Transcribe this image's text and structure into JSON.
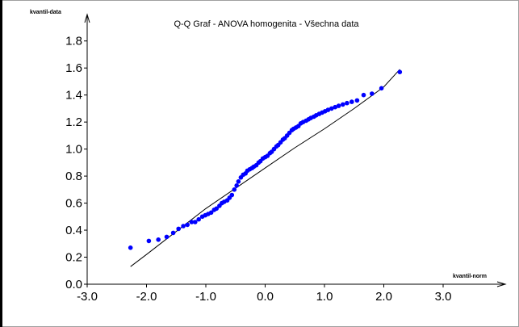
{
  "chart_data": {
    "type": "scatter",
    "title": "Q-Q Graf - ANOVA homogenita - Všechna data",
    "xlabel": "kvantil-norm",
    "ylabel": "kvantil-data",
    "xlim": [
      -3.0,
      3.0
    ],
    "ylim": [
      0.0,
      1.9
    ],
    "xticks": [
      "-3.0",
      "-2.0",
      "-1.0",
      "0.0",
      "1.0",
      "2.0",
      "3.0"
    ],
    "yticks": [
      "0.0",
      "0.2",
      "0.4",
      "0.6",
      "0.8",
      "1.0",
      "1.2",
      "1.4",
      "1.6",
      "1.8"
    ],
    "grid": false,
    "series": [
      {
        "kind": "points",
        "color": "#0000ff",
        "x": [
          -2.27,
          -1.96,
          -1.8,
          -1.66,
          -1.55,
          -1.46,
          -1.38,
          -1.31,
          -1.24,
          -1.18,
          -1.12,
          -1.06,
          -1.01,
          -0.96,
          -0.91,
          -0.86,
          -0.82,
          -0.77,
          -0.73,
          -0.69,
          -0.64,
          -0.6,
          -0.56,
          -0.52,
          -0.48,
          -0.45,
          -0.41,
          -0.37,
          -0.33,
          -0.3,
          -0.26,
          -0.22,
          -0.19,
          -0.15,
          -0.11,
          -0.08,
          -0.04,
          0.0,
          0.04,
          0.08,
          0.11,
          0.15,
          0.19,
          0.22,
          0.26,
          0.3,
          0.33,
          0.37,
          0.41,
          0.45,
          0.48,
          0.52,
          0.56,
          0.6,
          0.64,
          0.69,
          0.73,
          0.77,
          0.82,
          0.86,
          0.91,
          0.96,
          1.01,
          1.06,
          1.12,
          1.18,
          1.24,
          1.31,
          1.38,
          1.46,
          1.55,
          1.66,
          1.8,
          1.96,
          2.27
        ],
        "y": [
          0.27,
          0.32,
          0.33,
          0.35,
          0.38,
          0.41,
          0.43,
          0.44,
          0.46,
          0.46,
          0.48,
          0.5,
          0.51,
          0.52,
          0.53,
          0.55,
          0.56,
          0.58,
          0.6,
          0.61,
          0.62,
          0.64,
          0.66,
          0.7,
          0.73,
          0.76,
          0.79,
          0.81,
          0.82,
          0.84,
          0.85,
          0.86,
          0.87,
          0.88,
          0.9,
          0.91,
          0.93,
          0.94,
          0.95,
          0.97,
          0.98,
          1.0,
          1.02,
          1.03,
          1.05,
          1.07,
          1.08,
          1.1,
          1.12,
          1.14,
          1.15,
          1.16,
          1.17,
          1.19,
          1.2,
          1.21,
          1.22,
          1.23,
          1.24,
          1.25,
          1.26,
          1.27,
          1.28,
          1.29,
          1.3,
          1.31,
          1.32,
          1.33,
          1.34,
          1.35,
          1.36,
          1.4,
          1.41,
          1.45,
          1.57
        ]
      },
      {
        "kind": "reference-line",
        "color": "#000000",
        "x": [
          -2.27,
          -2.0,
          -1.5,
          -1.0,
          -0.5,
          0.0,
          0.5,
          1.0,
          1.5,
          2.0,
          2.27
        ],
        "y": [
          0.13,
          0.22,
          0.39,
          0.56,
          0.71,
          0.86,
          1.01,
          1.15,
          1.3,
          1.46,
          1.59
        ]
      }
    ]
  }
}
